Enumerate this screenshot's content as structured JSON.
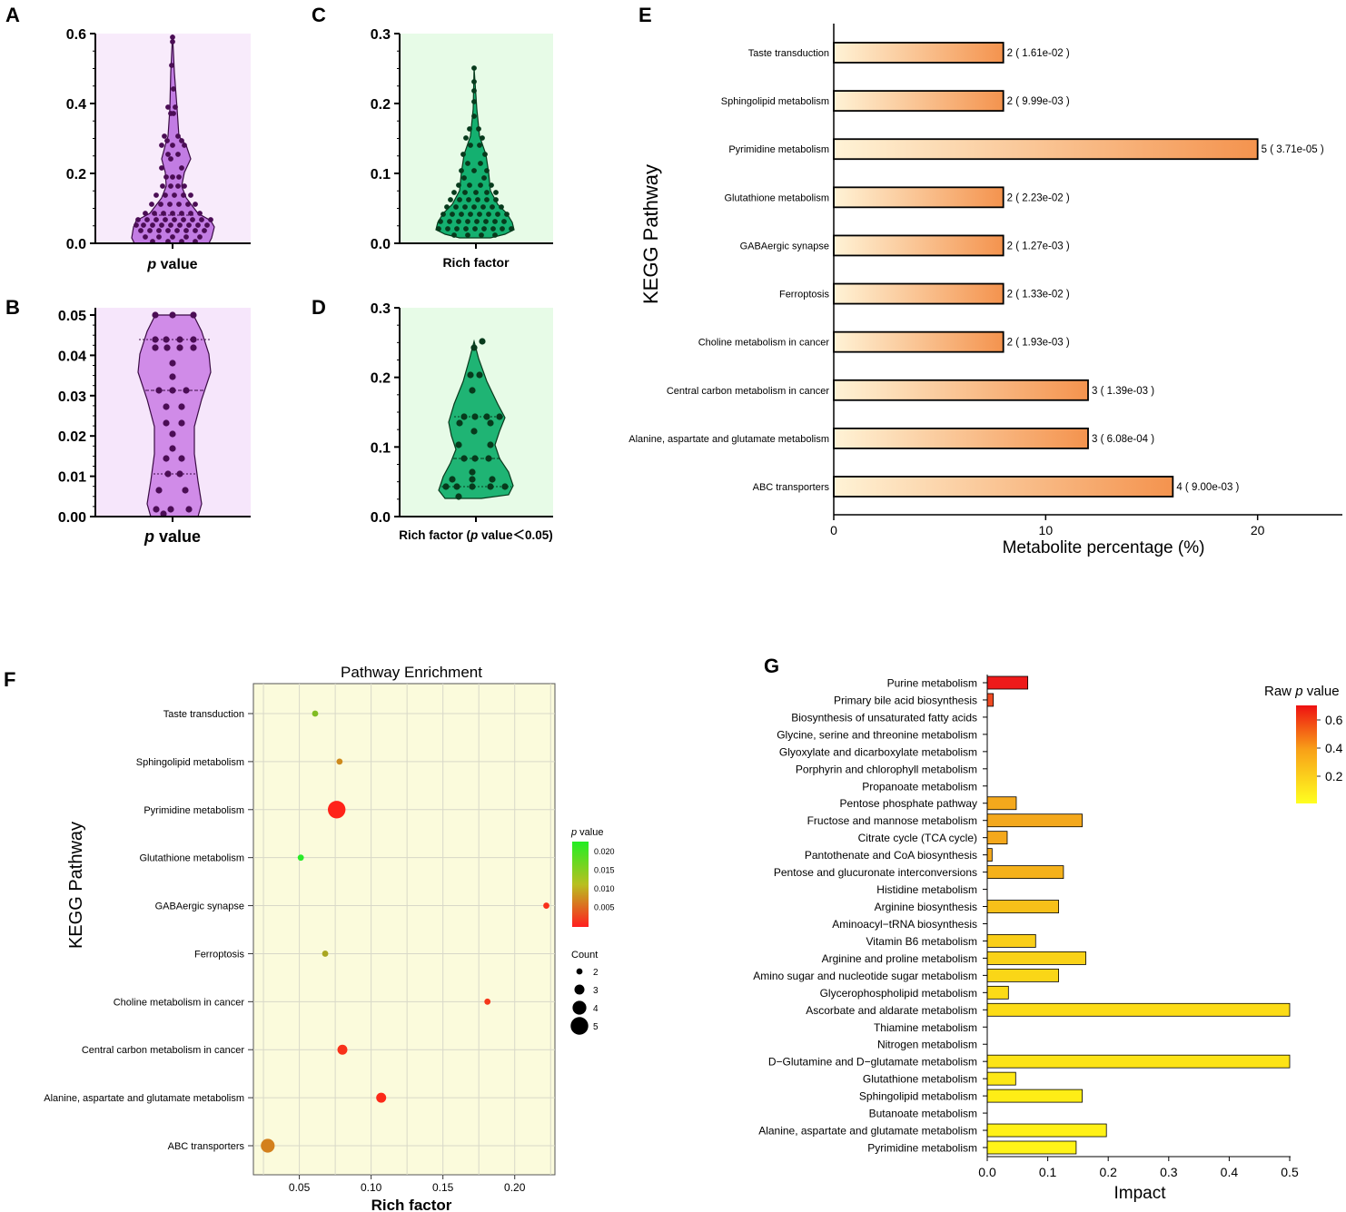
{
  "panels": {
    "A": {
      "letter": "A",
      "xlabel_italic": "p",
      "xlabel_rest": " value",
      "ticks": [
        "0.0",
        "0.2",
        "0.4",
        "0.6"
      ],
      "color": "#c27ce3",
      "bg": "#f8ebfb",
      "dot": "#4b0d55"
    },
    "B": {
      "letter": "B",
      "xlabel_italic": "p",
      "xlabel_rest": " value",
      "ticks": [
        "0.00",
        "0.01",
        "0.02",
        "0.03",
        "0.04",
        "0.05"
      ],
      "color": "#d08be8",
      "bg": "#f6e6fb",
      "dot": "#4b0d55"
    },
    "C": {
      "letter": "C",
      "xlabel": "Rich factor",
      "ticks": [
        "0.0",
        "0.1",
        "0.2",
        "0.3"
      ],
      "color": "#14b070",
      "bg": "#e7fbe7",
      "dot": "#073a1c"
    },
    "D": {
      "letter": "D",
      "xlabel_pre": "Rich factor (",
      "xlabel_italic": "p",
      "xlabel_post": " value＜0.05)",
      "ticks": [
        "0.0",
        "0.1",
        "0.2",
        "0.3"
      ],
      "color": "#1fb474",
      "bg": "#e7fbe7",
      "dot": "#073a1c"
    },
    "E": {
      "letter": "E"
    },
    "F": {
      "letter": "F"
    },
    "G": {
      "letter": "G"
    }
  },
  "chart_data": [
    {
      "panel": "E",
      "type": "bar",
      "orientation": "horizontal",
      "ylabel": "KEGG Pathway",
      "xlabel": "Metabolite percentage (%)",
      "xlim": [
        0,
        24
      ],
      "xticks": [
        "0",
        "10",
        "20"
      ],
      "categories": [
        "Taste transduction",
        "Sphingolipid metabolism",
        "Pyrimidine metabolism",
        "Glutathione metabolism",
        "GABAergic synapse",
        "Ferroptosis",
        "Choline metabolism in cancer",
        "Central carbon metabolism in cancer",
        "Alanine, aspartate and glutamate metabolism",
        "ABC transporters"
      ],
      "values": [
        8,
        8,
        20,
        8,
        8,
        8,
        8,
        12,
        12,
        16
      ],
      "labels": [
        "2 ( 1.61e-02 )",
        "2 ( 9.99e-03 )",
        "5 ( 3.71e-05 )",
        "2 ( 2.23e-02 )",
        "2 ( 1.27e-03 )",
        "2 ( 1.33e-02 )",
        "2 ( 1.93e-03 )",
        "3 ( 1.39e-03 )",
        "3 ( 6.08e-04 )",
        "4 ( 9.00e-03 )"
      ],
      "colors": {
        "start": "#fff3d6",
        "end": "#f4934e"
      }
    },
    {
      "panel": "F",
      "type": "scatter",
      "title": "Pathway Enrichment",
      "ylabel": "KEGG Pathway",
      "xlabel": "Rich factor",
      "xlim": [
        0.018,
        0.228
      ],
      "xticks": [
        "0.05",
        "0.10",
        "0.15",
        "0.20"
      ],
      "categories": [
        "Taste transduction",
        "Sphingolipid metabolism",
        "Pyrimidine metabolism",
        "Glutathione metabolism",
        "GABAergic synapse",
        "Ferroptosis",
        "Choline metabolism in cancer",
        "Central carbon metabolism in cancer",
        "Alanine, aspartate and glutamate metabolism",
        "ABC transporters"
      ],
      "x": [
        0.061,
        0.078,
        0.076,
        0.051,
        0.222,
        0.068,
        0.181,
        0.08,
        0.107,
        0.028
      ],
      "count": [
        2,
        2,
        5,
        2,
        2,
        2,
        2,
        3,
        3,
        4
      ],
      "pvalue": [
        0.0161,
        0.00999,
        3.71e-05,
        0.0223,
        0.00127,
        0.0133,
        0.00193,
        0.00139,
        0.000608,
        0.009
      ],
      "legend": {
        "p_title_italic": "p",
        "p_title_rest": " value",
        "p_ticks": [
          "0.020",
          "0.015",
          "0.010",
          "0.005"
        ],
        "count_title": "Count",
        "count_levels": [
          "2",
          "3",
          "4",
          "5"
        ]
      },
      "colors": {
        "bg": "#fbfbdc",
        "low": "#ff1f1f",
        "high": "#22ee22"
      }
    },
    {
      "panel": "G",
      "type": "bar",
      "orientation": "horizontal",
      "xlabel": "Impact",
      "xlim": [
        0,
        0.5
      ],
      "xticks": [
        "0.0",
        "0.1",
        "0.2",
        "0.3",
        "0.4",
        "0.5"
      ],
      "categories": [
        "Purine metabolism",
        "Primary bile acid biosynthesis",
        "Biosynthesis of unsaturated fatty acids",
        "Glycine, serine and threonine metabolism",
        "Glyoxylate and dicarboxylate metabolism",
        "Porphyrin and chlorophyll metabolism",
        "Propanoate metabolism",
        "Pentose phosphate pathway",
        "Fructose and mannose metabolism",
        "Citrate cycle (TCA cycle)",
        "Pantothenate and CoA biosynthesis",
        "Pentose and glucuronate interconversions",
        "Histidine metabolism",
        "Arginine biosynthesis",
        "Aminoacyl−tRNA biosynthesis",
        "Vitamin B6 metabolism",
        "Arginine and proline metabolism",
        "Amino sugar and nucleotide sugar metabolism",
        "Glycerophospholipid metabolism",
        "Ascorbate and aldarate metabolism",
        "Thiamine metabolism",
        "Nitrogen metabolism",
        "D−Glutamine and D−glutamate metabolism",
        "Glutathione metabolism",
        "Sphingolipid metabolism",
        "Butanoate metabolism",
        "Alanine, aspartate and glutamate metabolism",
        "Pyrimidine metabolism"
      ],
      "values": [
        0.067,
        0.01,
        0,
        0,
        0,
        0,
        0,
        0.048,
        0.157,
        0.033,
        0.008,
        0.126,
        0,
        0.118,
        0,
        0.08,
        0.163,
        0.118,
        0.035,
        0.5,
        0,
        0,
        0.5,
        0.047,
        0.157,
        0,
        0.197,
        0.147
      ],
      "bar_colors": [
        "#ee1a1a",
        "#f04a22",
        "#f0a020",
        "#f0a020",
        "#f0a020",
        "#f0a020",
        "#f0a020",
        "#f4a81c",
        "#f4a81c",
        "#f4a81c",
        "#f4a81c",
        "#f5b11a",
        "#f5b11a",
        "#f7c019",
        "#f7c019",
        "#f9ce18",
        "#f9d218",
        "#fad617",
        "#fbdb17",
        "#fcdc16",
        "#fcdc16",
        "#fcdc16",
        "#fce316",
        "#fde816",
        "#feed16",
        "#feed16",
        "#fff117",
        "#fff417"
      ],
      "legend": {
        "title_pre": "Raw ",
        "title_italic": "p",
        "title_post": " value",
        "ticks": [
          "0.6",
          "0.4",
          "0.2"
        ]
      }
    }
  ]
}
